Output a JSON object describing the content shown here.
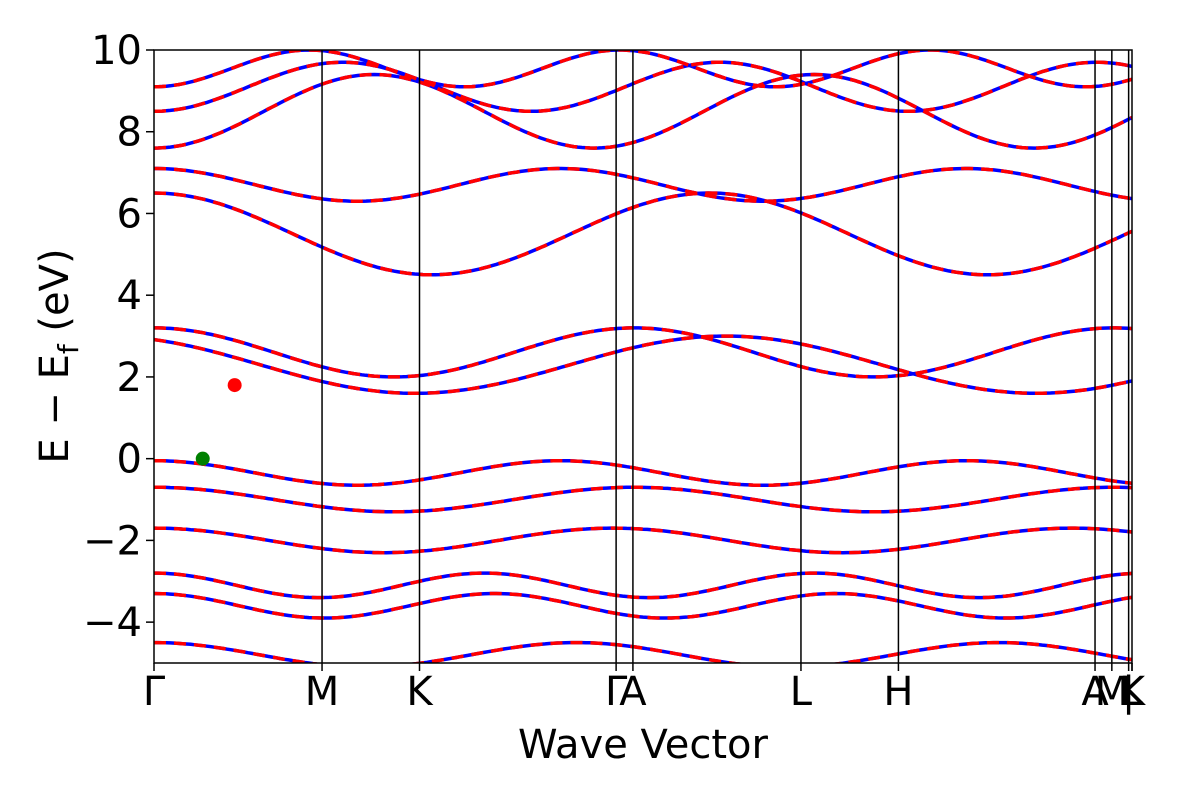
{
  "chart_data": {
    "type": "line",
    "title": "",
    "xlabel": "Wave Vector",
    "ylabel": "E − E",
    "ylabel_subscript": "f",
    "ylabel_unit": " (eV)",
    "ylim": [
      -5,
      10
    ],
    "yticks": [
      -4,
      -2,
      0,
      2,
      4,
      6,
      8,
      10
    ],
    "ytick_labels": [
      "−4",
      "−2",
      "0",
      "2",
      "4",
      "6",
      "8",
      "10"
    ],
    "kpoints": [
      {
        "label": "Γ",
        "x": 0.0
      },
      {
        "label": "M",
        "x": 1.0
      },
      {
        "label": "K",
        "x": 1.58
      },
      {
        "label": "Γ",
        "x": 2.75
      },
      {
        "label": "A",
        "x": 2.85
      },
      {
        "label": "L",
        "x": 3.85
      },
      {
        "label": "H",
        "x": 4.43
      },
      {
        "label": "A",
        "x": 5.6
      },
      {
        "label": "M",
        "x": 5.7
      },
      {
        "label": "|",
        "x": 5.8
      },
      {
        "label": "L",
        "x": 5.82
      },
      {
        "label": "K",
        "x": 5.92
      }
    ],
    "kpoint_tick_text": [
      "Γ",
      "M",
      "K",
      "Γ",
      "A",
      "L",
      "H",
      "A",
      "M",
      "|",
      "L",
      "K"
    ],
    "xlim": [
      0,
      5.82
    ],
    "series": [
      {
        "color": "#0000ff",
        "style": "solid"
      },
      {
        "color": "#ff0000",
        "style": "dashed"
      }
    ],
    "valence_band_maximum": {
      "x": 0.29,
      "y": 0.0,
      "color": "#008000"
    },
    "conduction_band_minimum": {
      "x": 0.48,
      "y": 1.8,
      "color": "#ff0000"
    }
  }
}
